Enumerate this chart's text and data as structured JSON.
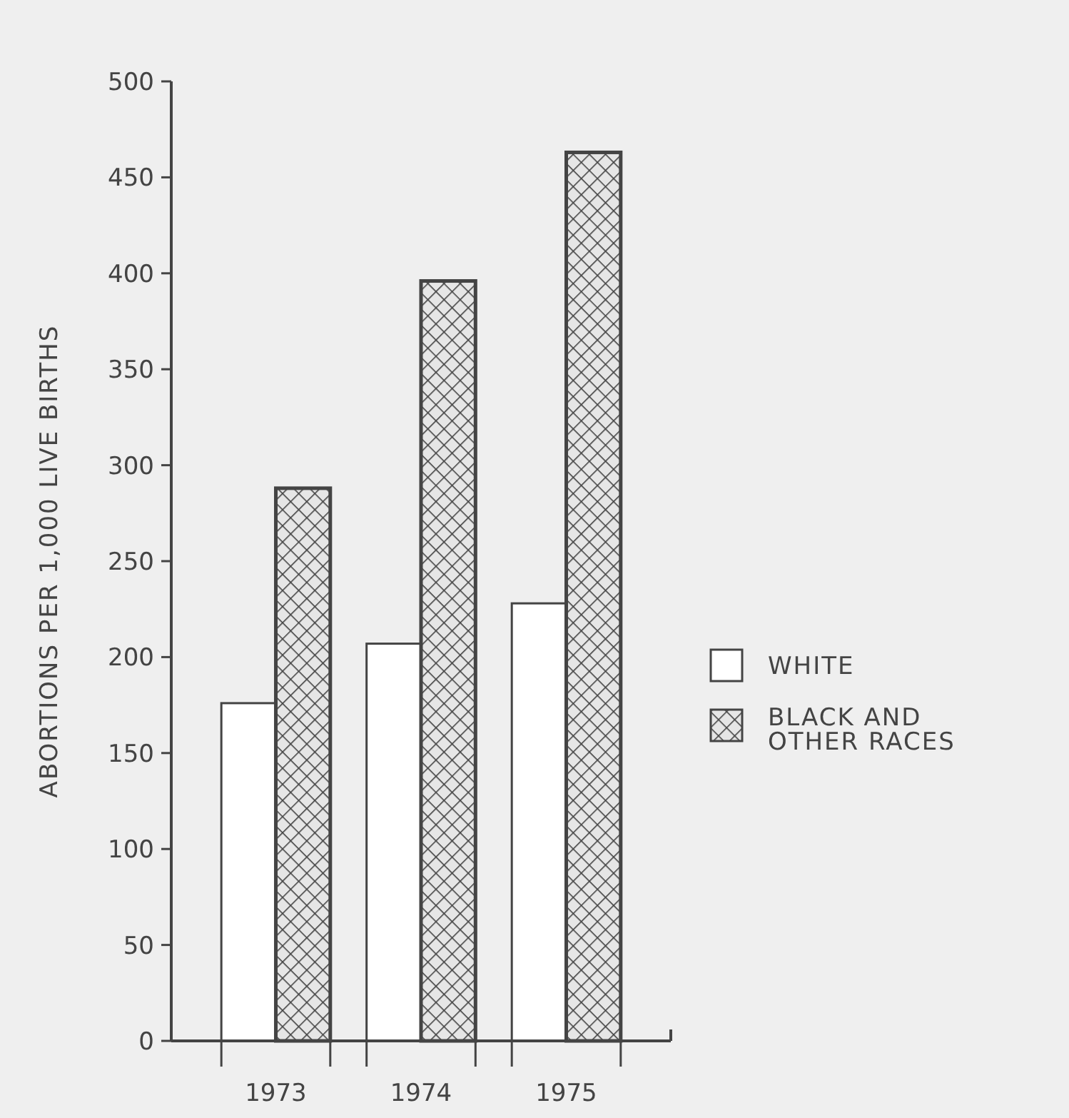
{
  "chart_data": {
    "type": "bar",
    "ylabel": "ABORTIONS PER 1,000 LIVE BIRTHS",
    "categories": [
      "1973",
      "1974",
      "1975"
    ],
    "series": [
      {
        "name": "WHITE",
        "color": "#ffffff",
        "values": [
          176,
          207,
          228
        ]
      },
      {
        "name": "BLACK AND OTHER RACES",
        "color": "#444444",
        "values": [
          288,
          396,
          463
        ]
      }
    ],
    "ylim": [
      0,
      500
    ],
    "yticks": [
      0,
      50,
      100,
      150,
      200,
      250,
      300,
      350,
      400,
      450,
      500
    ],
    "grid": false,
    "legend": "right"
  }
}
